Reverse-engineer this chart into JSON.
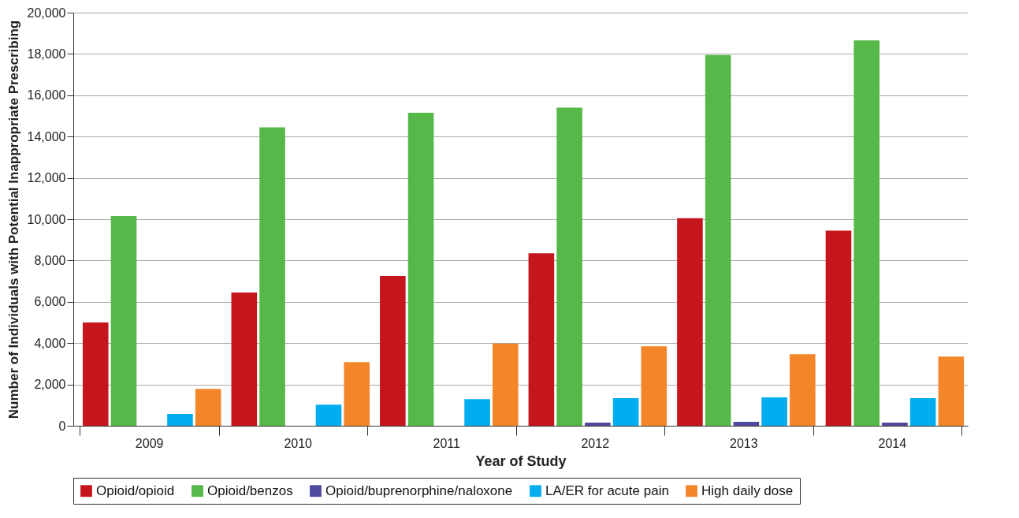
{
  "chart_data": {
    "type": "bar",
    "xlabel": "Year of Study",
    "ylabel": "Number of Individuals with Potential Inappropriate Prescribing",
    "categories": [
      "2009",
      "2010",
      "2011",
      "2012",
      "2013",
      "2014"
    ],
    "series": [
      {
        "name": "Opioid/opioid",
        "color": "#c4161c",
        "values": [
          5000,
          6450,
          7250,
          8350,
          10050,
          9450
        ]
      },
      {
        "name": "Opioid/benzos",
        "color": "#56b848",
        "values": [
          10150,
          14450,
          15150,
          15400,
          17950,
          18650
        ]
      },
      {
        "name": "Opioid/buprenorphine/naloxone",
        "color": "#4f4a9c",
        "values": [
          0,
          0,
          0,
          150,
          190,
          150
        ]
      },
      {
        "name": "LA/ER for acute pain",
        "color": "#00adef",
        "values": [
          570,
          1020,
          1290,
          1340,
          1370,
          1340
        ]
      },
      {
        "name": "High daily dose",
        "color": "#f4862a",
        "values": [
          1780,
          3080,
          3980,
          3850,
          3460,
          3350
        ]
      }
    ],
    "ylim": [
      0,
      20000
    ],
    "yticks": [
      0,
      {
        "value": 2000,
        "label": "2,000"
      },
      {
        "value": 4000,
        "label": "4,000"
      },
      {
        "value": 6000,
        "label": "6,000"
      },
      {
        "value": 8000,
        "label": "8,000"
      },
      {
        "value": 10000,
        "label": "10,000"
      },
      {
        "value": 12000,
        "label": "12,000"
      },
      {
        "value": 14000,
        "label": "14,000"
      },
      {
        "value": 16000,
        "label": "16,000"
      },
      {
        "value": 18000,
        "label": "18,000"
      },
      {
        "value": 20000,
        "label": "20,000"
      }
    ],
    "grid": "y",
    "legend": "bottom"
  }
}
